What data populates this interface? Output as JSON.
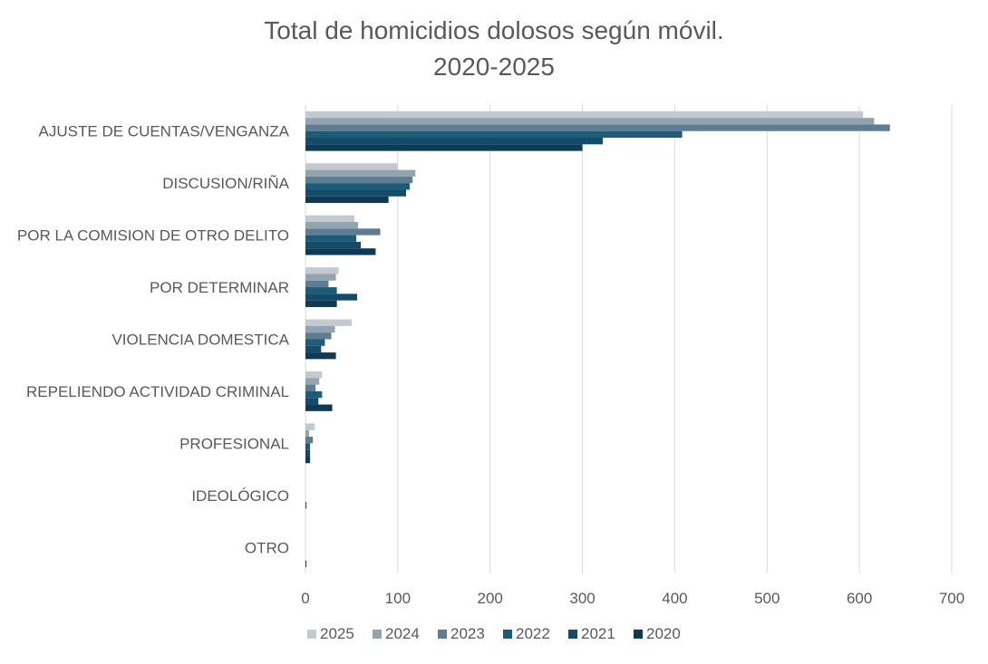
{
  "chart_data": {
    "type": "bar",
    "orientation": "horizontal",
    "title_line1": "Total de homicidios dolosos según móvil.",
    "title_line2": "2020-2025",
    "categories": [
      "AJUSTE DE CUENTAS/VENGANZA",
      "DISCUSION/RIÑA",
      "POR LA COMISION DE OTRO DELITO",
      "POR DETERMINAR",
      "VIOLENCIA DOMESTICA",
      "REPELIENDO ACTIVIDAD CRIMINAL",
      "PROFESIONAL",
      "IDEOLÓGICO",
      "OTRO"
    ],
    "series": [
      {
        "name": "2025",
        "color": "#c3c9d0",
        "values": [
          604,
          100,
          53,
          36,
          50,
          18,
          10,
          0,
          0
        ]
      },
      {
        "name": "2024",
        "color": "#93a4b1",
        "values": [
          616,
          119,
          57,
          33,
          32,
          15,
          4,
          0,
          0
        ]
      },
      {
        "name": "2023",
        "color": "#5e7c92",
        "values": [
          633,
          116,
          81,
          25,
          28,
          11,
          8,
          0,
          0
        ]
      },
      {
        "name": "2022",
        "color": "#1d5c79",
        "values": [
          408,
          113,
          55,
          34,
          21,
          18,
          5,
          0,
          0
        ]
      },
      {
        "name": "2021",
        "color": "#134b68",
        "values": [
          322,
          109,
          60,
          56,
          17,
          14,
          5,
          1,
          0
        ]
      },
      {
        "name": "2020",
        "color": "#0e3a54",
        "values": [
          300,
          90,
          76,
          34,
          33,
          29,
          5,
          0,
          1
        ]
      }
    ],
    "xlim": [
      0,
      700
    ],
    "xticks": [
      0,
      100,
      200,
      300,
      400,
      500,
      600,
      700
    ],
    "grid": "vertical",
    "legend_position": "bottom"
  }
}
